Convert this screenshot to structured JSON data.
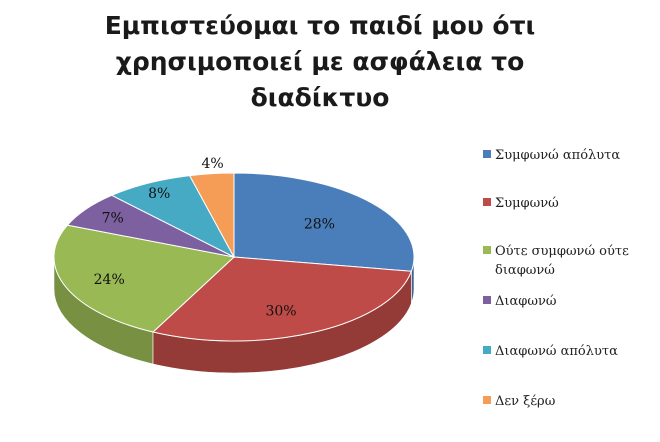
{
  "chart_data": {
    "type": "pie",
    "title_lines": [
      "Εμπιστεύομαι το παιδί μου ότι",
      "χρησιμοποιεί με ασφάλεια το",
      "διαδίκτυο"
    ],
    "categories": [
      "Συμφωνώ απόλυτα",
      "Συμφωνώ",
      "Ούτε συμφωνώ ούτε διαφωνώ",
      "Διαφωνώ",
      "Διαφωνώ απόλυτα",
      "Δεν ξέρω"
    ],
    "legend_lines": [
      [
        "Συμφωνώ απόλυτα"
      ],
      [
        "Συμφωνώ"
      ],
      [
        "Ούτε συμφωνώ ούτε",
        "διαφωνώ"
      ],
      [
        "Διαφωνώ"
      ],
      [
        "Διαφωνώ απόλυτα"
      ],
      [
        "Δεν ξέρω"
      ]
    ],
    "values": [
      28,
      30,
      24,
      7,
      8,
      4
    ],
    "data_labels": [
      "28%",
      "30%",
      "24%",
      "7%",
      "8%",
      "4%"
    ],
    "colors": [
      "#4a7ebb",
      "#be4b48",
      "#98b954",
      "#7d60a0",
      "#46aac5",
      "#f59d56"
    ],
    "legend_position": "right",
    "style": "3d"
  }
}
